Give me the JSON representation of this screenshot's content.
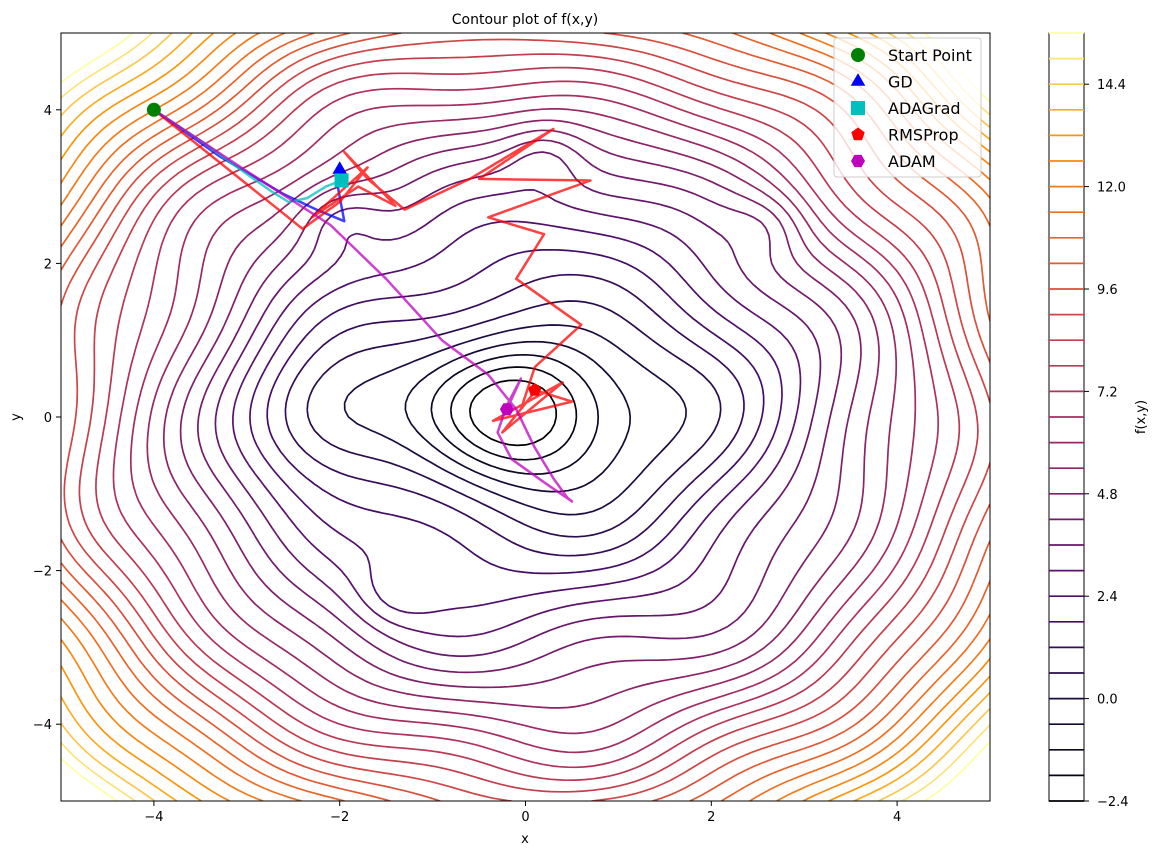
{
  "chart_data": {
    "type": "contour",
    "title": "Contour plot of f(x,y)",
    "xlabel": "x",
    "ylabel": "y",
    "xlim": [
      -5,
      5
    ],
    "ylim": [
      -5,
      5
    ],
    "xticks": [
      -4,
      -2,
      0,
      2,
      4
    ],
    "yticks": [
      -4,
      -2,
      0,
      2,
      4
    ],
    "grid": false,
    "colorbar": {
      "label": "f(x,y)",
      "range": [
        -2.4,
        15.6
      ],
      "step": 0.6,
      "ticks": [
        -2.4,
        0.0,
        2.4,
        4.8,
        7.2,
        9.6,
        12.0,
        14.4
      ],
      "colormap": "inferno-like (dark purple low to yellow high)"
    },
    "legend": {
      "placement": "upper right",
      "entries": [
        {
          "label": "Start Point",
          "marker": "circle",
          "color": "#008000"
        },
        {
          "label": "GD",
          "marker": "triangle",
          "color": "#0000ff"
        },
        {
          "label": "ADAGrad",
          "marker": "square",
          "color": "#00bfbf"
        },
        {
          "label": "RMSProp",
          "marker": "pentagon",
          "color": "#ff0000"
        },
        {
          "label": "ADAM",
          "marker": "hexagon",
          "color": "#bf00bf"
        }
      ]
    },
    "start_point": {
      "x": -4.0,
      "y": 4.0
    },
    "series": [
      {
        "name": "GD",
        "color": "#0000ff",
        "x": [
          -4.0,
          -3.3,
          -2.6,
          -2.25,
          -1.95,
          -2.02,
          -2.0
        ],
        "y": [
          4.0,
          3.4,
          2.9,
          2.7,
          2.55,
          3.0,
          3.22
        ]
      },
      {
        "name": "ADAGrad",
        "color": "#00bfbf",
        "x": [
          -4.0,
          -3.5,
          -3.1,
          -2.75,
          -2.55,
          -2.35,
          -2.15,
          -1.98
        ],
        "y": [
          4.0,
          3.6,
          3.25,
          2.95,
          2.8,
          2.85,
          3.0,
          3.08
        ]
      },
      {
        "name": "RMSProp",
        "color": "#ff0000",
        "x": [
          -4.0,
          -2.4,
          -2.0,
          -1.7,
          -2.3,
          -1.8,
          -1.4,
          -1.95,
          -1.7,
          -1.3,
          -0.6,
          0.3,
          -0.5,
          0.7,
          -0.4,
          0.2,
          -0.1,
          0.6,
          0.1,
          -0.05,
          0.08,
          -0.25,
          0.4,
          -0.35,
          0.5,
          0.1
        ],
        "y": [
          4.0,
          2.45,
          2.8,
          3.25,
          2.6,
          3.0,
          2.75,
          3.45,
          3.1,
          2.7,
          3.1,
          3.75,
          3.1,
          3.08,
          2.6,
          2.38,
          1.8,
          1.2,
          0.65,
          0.1,
          0.3,
          -0.2,
          0.45,
          -0.05,
          0.2,
          0.35
        ]
      },
      {
        "name": "ADAM",
        "color": "#bf00bf",
        "x": [
          -4.0,
          -3.0,
          -2.1,
          -1.5,
          -0.9,
          -0.4,
          -0.1,
          0.1,
          0.3,
          0.45,
          0.5,
          0.2,
          -0.15,
          -0.3,
          -0.2,
          -0.05,
          -0.2
        ],
        "y": [
          4.0,
          3.2,
          2.5,
          1.8,
          1.0,
          0.55,
          0.1,
          -0.4,
          -0.8,
          -1.05,
          -1.1,
          -0.85,
          -0.55,
          -0.2,
          0.15,
          0.5,
          0.1
        ]
      }
    ]
  }
}
